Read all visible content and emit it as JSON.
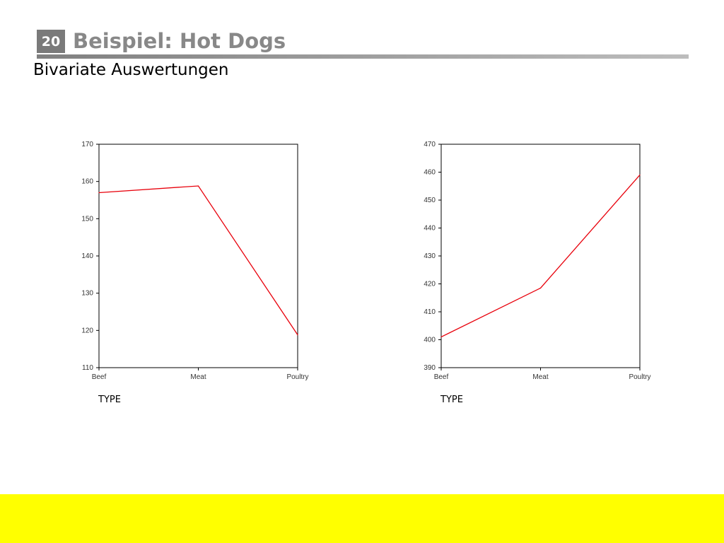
{
  "slide": {
    "number": "20",
    "title": "Beispiel: Hot Dogs",
    "subtitle": "Bivariate Auswertungen",
    "footer_color": "#ffff00"
  },
  "chart_data": [
    {
      "type": "line",
      "categories": [
        "Beef",
        "Meat",
        "Poultry"
      ],
      "values": [
        157,
        158.8,
        118.8
      ],
      "xlabel": "TYPE",
      "ylabel": "",
      "ylim": [
        110,
        170
      ],
      "yticks": [
        110,
        120,
        130,
        140,
        150,
        160,
        170
      ],
      "line_color": "#e8000b",
      "grid": false
    },
    {
      "type": "line",
      "categories": [
        "Beef",
        "Meat",
        "Poultry"
      ],
      "values": [
        401,
        418.5,
        459
      ],
      "xlabel": "TYPE",
      "ylabel": "",
      "ylim": [
        390,
        470
      ],
      "yticks": [
        390,
        400,
        410,
        420,
        430,
        440,
        450,
        460,
        470
      ],
      "line_color": "#e8000b",
      "grid": false
    }
  ]
}
